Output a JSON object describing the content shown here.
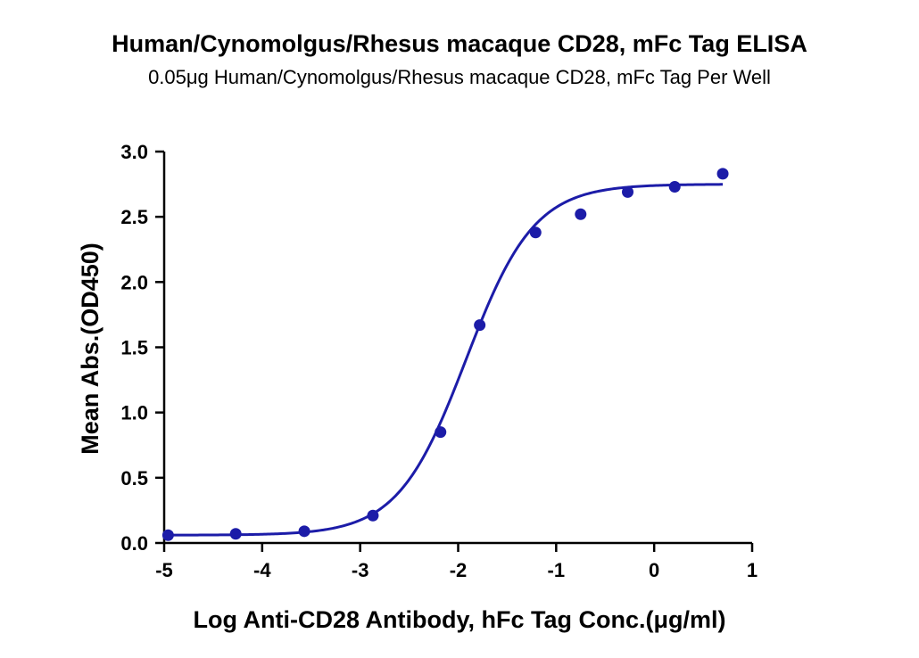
{
  "chart_data": {
    "type": "scatter",
    "title": "Human/Cynomolgus/Rhesus macaque CD28, mFc Tag ELISA",
    "subtitle": "0.05μg Human/Cynomolgus/Rhesus macaque CD28, mFc  Tag Per Well",
    "xlabel": "Log Anti-CD28 Antibody, hFc Tag Conc.(μg/ml)",
    "ylabel": "Mean Abs.(OD450)",
    "xlim": [
      -5,
      1
    ],
    "ylim": [
      0,
      3.0
    ],
    "x_ticks": [
      -5,
      -4,
      -3,
      -2,
      -1,
      0,
      1
    ],
    "x_tick_labels": [
      "-5",
      "-4",
      "-3",
      "-2",
      "-1",
      "0",
      "1"
    ],
    "y_ticks": [
      0,
      0.5,
      1.0,
      1.5,
      2.0,
      2.5,
      3.0
    ],
    "y_tick_labels": [
      "0.0",
      "0.5",
      "1.0",
      "1.5",
      "2.0",
      "2.5",
      "3.0"
    ],
    "grid": false,
    "legend": "none",
    "color": "#1c1ca8",
    "series": [
      {
        "x": [
          -4.96,
          -4.27,
          -3.57,
          -2.87,
          -2.18,
          -1.78,
          -1.21,
          -0.75,
          -0.27,
          0.21,
          0.7
        ],
        "y": [
          0.06,
          0.07,
          0.09,
          0.21,
          0.85,
          1.67,
          2.38,
          2.52,
          2.69,
          2.73,
          2.83
        ]
      }
    ],
    "fit_curve": {
      "model": "4PL",
      "bottom": 0.06,
      "top": 2.75,
      "log_ec50": -1.92,
      "hill_slope": 1.25
    }
  }
}
